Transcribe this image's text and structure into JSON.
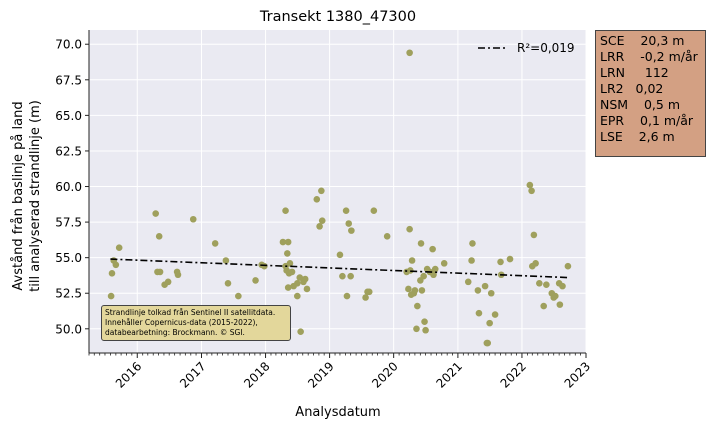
{
  "chart_data": {
    "type": "scatter",
    "title": "Transekt 1380_47300",
    "xlabel": "Analysdatum",
    "ylabel_lines": [
      "Avstånd från baslinje på land",
      "till analyserad strandlinje (m)"
    ],
    "xlim": [
      "2015-04-01",
      "2023-01-01"
    ],
    "ylim": [
      48.3,
      71.0
    ],
    "x_ticks": [
      "2016",
      "2017",
      "2018",
      "2019",
      "2020",
      "2021",
      "2022",
      "2023"
    ],
    "y_ticks": [
      "50.0",
      "52.5",
      "55.0",
      "57.5",
      "60.0",
      "62.5",
      "65.0",
      "67.5",
      "70.0"
    ],
    "grid": true,
    "legend": {
      "placement": "top-right",
      "entries": [
        {
          "label": "R²=0,019",
          "style": "dash-dot"
        }
      ]
    },
    "trend": {
      "x": [
        "2015-08-01",
        "2022-09-25"
      ],
      "y": [
        54.9,
        53.6
      ]
    },
    "colors": {
      "points": "#9fa05d",
      "trend": "#000000",
      "plot_bg": "#eaeaf2",
      "grid": "#ffffff"
    },
    "points": [
      {
        "x": "2015-08-05",
        "y": 52.3
      },
      {
        "x": "2015-08-10",
        "y": 53.9
      },
      {
        "x": "2015-08-20",
        "y": 54.8
      },
      {
        "x": "2015-09-01",
        "y": 54.5
      },
      {
        "x": "2015-09-20",
        "y": 55.7
      },
      {
        "x": "2016-04-15",
        "y": 58.1
      },
      {
        "x": "2016-04-25",
        "y": 54.0
      },
      {
        "x": "2016-05-05",
        "y": 56.5
      },
      {
        "x": "2016-05-10",
        "y": 54.0
      },
      {
        "x": "2016-06-05",
        "y": 53.1
      },
      {
        "x": "2016-06-25",
        "y": 53.3
      },
      {
        "x": "2016-08-15",
        "y": 54.0
      },
      {
        "x": "2016-08-20",
        "y": 53.8
      },
      {
        "x": "2016-11-15",
        "y": 57.7
      },
      {
        "x": "2017-03-20",
        "y": 56.0
      },
      {
        "x": "2017-05-20",
        "y": 54.8
      },
      {
        "x": "2017-06-01",
        "y": 53.2
      },
      {
        "x": "2017-07-30",
        "y": 52.3
      },
      {
        "x": "2017-11-05",
        "y": 53.4
      },
      {
        "x": "2017-12-10",
        "y": 54.5
      },
      {
        "x": "2017-12-25",
        "y": 54.4
      },
      {
        "x": "2018-04-10",
        "y": 56.1
      },
      {
        "x": "2018-04-25",
        "y": 58.3
      },
      {
        "x": "2018-04-25",
        "y": 54.4
      },
      {
        "x": "2018-05-01",
        "y": 54.1
      },
      {
        "x": "2018-05-05",
        "y": 55.3
      },
      {
        "x": "2018-05-10",
        "y": 56.1
      },
      {
        "x": "2018-05-10",
        "y": 52.9
      },
      {
        "x": "2018-05-15",
        "y": 53.9
      },
      {
        "x": "2018-05-20",
        "y": 54.6
      },
      {
        "x": "2018-06-01",
        "y": 54.0
      },
      {
        "x": "2018-06-10",
        "y": 53.0
      },
      {
        "x": "2018-07-01",
        "y": 53.2
      },
      {
        "x": "2018-07-01",
        "y": 52.3
      },
      {
        "x": "2018-07-15",
        "y": 53.6
      },
      {
        "x": "2018-07-20",
        "y": 49.8
      },
      {
        "x": "2018-08-05",
        "y": 53.3
      },
      {
        "x": "2018-08-15",
        "y": 53.5
      },
      {
        "x": "2018-08-25",
        "y": 52.8
      },
      {
        "x": "2018-10-20",
        "y": 59.1
      },
      {
        "x": "2018-11-05",
        "y": 57.2
      },
      {
        "x": "2018-11-15",
        "y": 59.7
      },
      {
        "x": "2018-11-20",
        "y": 57.6
      },
      {
        "x": "2019-03-01",
        "y": 55.2
      },
      {
        "x": "2019-03-15",
        "y": 53.7
      },
      {
        "x": "2019-04-05",
        "y": 58.3
      },
      {
        "x": "2019-04-10",
        "y": 52.3
      },
      {
        "x": "2019-04-20",
        "y": 57.4
      },
      {
        "x": "2019-05-01",
        "y": 53.7
      },
      {
        "x": "2019-05-05",
        "y": 56.9
      },
      {
        "x": "2019-07-25",
        "y": 52.2
      },
      {
        "x": "2019-08-05",
        "y": 52.6
      },
      {
        "x": "2019-08-15",
        "y": 52.6
      },
      {
        "x": "2019-09-10",
        "y": 58.3
      },
      {
        "x": "2019-11-25",
        "y": 56.5
      },
      {
        "x": "2020-03-15",
        "y": 54.0
      },
      {
        "x": "2020-03-25",
        "y": 52.8
      },
      {
        "x": "2020-04-01",
        "y": 69.4
      },
      {
        "x": "2020-04-01",
        "y": 57.0
      },
      {
        "x": "2020-04-05",
        "y": 54.1
      },
      {
        "x": "2020-04-10",
        "y": 52.4
      },
      {
        "x": "2020-04-15",
        "y": 54.8
      },
      {
        "x": "2020-04-25",
        "y": 52.5
      },
      {
        "x": "2020-05-01",
        "y": 52.7
      },
      {
        "x": "2020-05-10",
        "y": 50.0
      },
      {
        "x": "2020-05-15",
        "y": 51.6
      },
      {
        "x": "2020-06-01",
        "y": 53.4
      },
      {
        "x": "2020-06-05",
        "y": 56.0
      },
      {
        "x": "2020-06-10",
        "y": 52.7
      },
      {
        "x": "2020-06-20",
        "y": 53.7
      },
      {
        "x": "2020-06-25",
        "y": 50.5
      },
      {
        "x": "2020-07-01",
        "y": 49.9
      },
      {
        "x": "2020-07-10",
        "y": 54.2
      },
      {
        "x": "2020-07-25",
        "y": 54.0
      },
      {
        "x": "2020-08-10",
        "y": 55.6
      },
      {
        "x": "2020-08-15",
        "y": 53.8
      },
      {
        "x": "2020-08-25",
        "y": 54.2
      },
      {
        "x": "2020-10-15",
        "y": 54.6
      },
      {
        "x": "2021-03-01",
        "y": 53.3
      },
      {
        "x": "2021-03-20",
        "y": 54.8
      },
      {
        "x": "2021-03-25",
        "y": 56.0
      },
      {
        "x": "2021-04-25",
        "y": 52.7
      },
      {
        "x": "2021-05-01",
        "y": 51.1
      },
      {
        "x": "2021-06-05",
        "y": 53.0
      },
      {
        "x": "2021-06-15",
        "y": 49.0
      },
      {
        "x": "2021-06-20",
        "y": 49.0
      },
      {
        "x": "2021-07-01",
        "y": 50.4
      },
      {
        "x": "2021-07-10",
        "y": 52.5
      },
      {
        "x": "2021-08-01",
        "y": 51.0
      },
      {
        "x": "2021-09-01",
        "y": 54.7
      },
      {
        "x": "2021-09-05",
        "y": 53.8
      },
      {
        "x": "2021-10-25",
        "y": 54.9
      },
      {
        "x": "2022-02-15",
        "y": 60.1
      },
      {
        "x": "2022-02-25",
        "y": 59.7
      },
      {
        "x": "2022-03-01",
        "y": 54.4
      },
      {
        "x": "2022-03-10",
        "y": 56.6
      },
      {
        "x": "2022-03-20",
        "y": 54.6
      },
      {
        "x": "2022-04-10",
        "y": 53.2
      },
      {
        "x": "2022-05-05",
        "y": 51.6
      },
      {
        "x": "2022-05-20",
        "y": 53.1
      },
      {
        "x": "2022-06-20",
        "y": 52.5
      },
      {
        "x": "2022-07-01",
        "y": 52.2
      },
      {
        "x": "2022-07-10",
        "y": 52.3
      },
      {
        "x": "2022-08-01",
        "y": 53.2
      },
      {
        "x": "2022-08-05",
        "y": 51.7
      },
      {
        "x": "2022-08-20",
        "y": 53.0
      },
      {
        "x": "2022-09-20",
        "y": 54.4
      }
    ]
  },
  "stats": [
    {
      "key": "SCE",
      "value": "20,3 m"
    },
    {
      "key": "LRR",
      "value": "-0,2 m/år"
    },
    {
      "key": "LRN",
      "value": "112"
    },
    {
      "key": "LR2",
      "value": "0,02"
    },
    {
      "key": "NSM",
      "value": "0,5 m"
    },
    {
      "key": "EPR",
      "value": "0,1 m/år"
    },
    {
      "key": "LSE",
      "value": "2,6 m"
    }
  ],
  "note": [
    "Strandlinje tolkad från Sentinel II satellitdata.",
    "Innehåller Copernicus-data (2015-2022),",
    "databearbetning: Brockmann. © SGI."
  ]
}
